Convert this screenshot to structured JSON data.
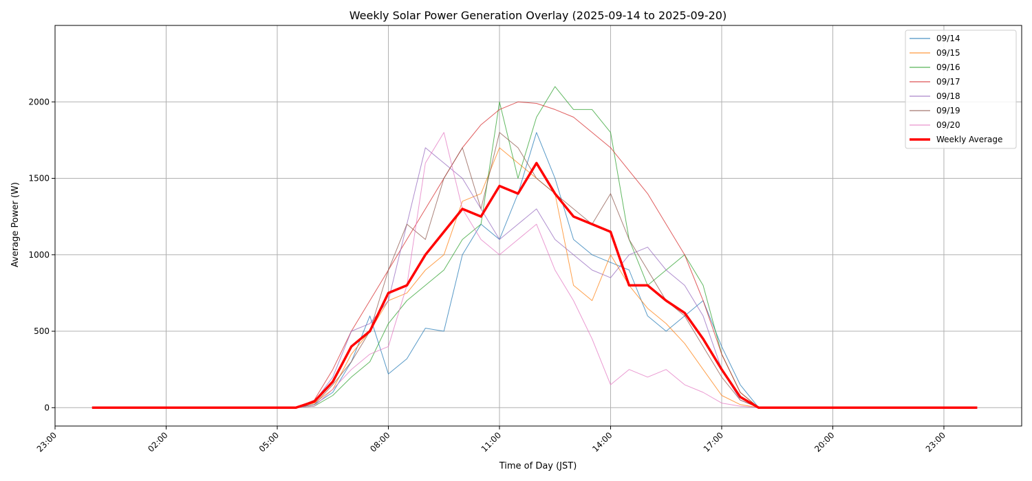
{
  "chart_data": {
    "type": "line",
    "title": "Weekly Solar Power Generation Overlay (2025-09-14 to 2025-09-20)",
    "xlabel": "Time of Day (JST)",
    "ylabel": "Average Power (W)",
    "xlim_hours": [
      -1.0,
      25.1
    ],
    "ylim": [
      -120,
      2500
    ],
    "x_ticks": [
      {
        "hour": -1,
        "label": "23:00"
      },
      {
        "hour": 2,
        "label": "02:00"
      },
      {
        "hour": 5,
        "label": "05:00"
      },
      {
        "hour": 8,
        "label": "08:00"
      },
      {
        "hour": 11,
        "label": "11:00"
      },
      {
        "hour": 14,
        "label": "14:00"
      },
      {
        "hour": 17,
        "label": "17:00"
      },
      {
        "hour": 20,
        "label": "20:00"
      },
      {
        "hour": 23,
        "label": "23:00"
      }
    ],
    "y_ticks": [
      0,
      500,
      1000,
      1500,
      2000
    ],
    "grid": true,
    "legend_position": "top-right",
    "x_hours": [
      0.0,
      0.5,
      1.0,
      1.5,
      2.0,
      2.5,
      3.0,
      3.5,
      4.0,
      4.5,
      5.0,
      5.5,
      6.0,
      6.5,
      7.0,
      7.5,
      8.0,
      8.5,
      9.0,
      9.5,
      10.0,
      10.5,
      11.0,
      11.5,
      12.0,
      12.5,
      13.0,
      13.5,
      14.0,
      14.5,
      15.0,
      15.5,
      16.0,
      16.5,
      17.0,
      17.5,
      18.0,
      18.5,
      19.0,
      19.5,
      20.0,
      20.5,
      21.0,
      21.5,
      22.0,
      22.5,
      23.0,
      23.5,
      23.9
    ],
    "series": [
      {
        "name": "09/14",
        "color": "#1f77b4",
        "values": [
          0,
          0,
          0,
          0,
          0,
          0,
          0,
          0,
          0,
          0,
          0,
          0,
          20,
          100,
          300,
          600,
          220,
          320,
          520,
          500,
          1000,
          1200,
          1100,
          1400,
          1800,
          1500,
          1100,
          1000,
          950,
          900,
          600,
          500,
          600,
          700,
          400,
          150,
          0,
          0,
          0,
          0,
          0,
          0,
          0,
          0,
          0,
          0,
          0,
          0,
          0
        ]
      },
      {
        "name": "09/15",
        "color": "#ff7f0e",
        "values": [
          0,
          0,
          0,
          0,
          0,
          0,
          0,
          0,
          0,
          0,
          0,
          0,
          30,
          120,
          350,
          500,
          700,
          750,
          900,
          1000,
          1350,
          1400,
          1700,
          1600,
          1500,
          1400,
          800,
          700,
          1000,
          800,
          650,
          550,
          420,
          250,
          80,
          20,
          0,
          0,
          0,
          0,
          0,
          0,
          0,
          0,
          0,
          0,
          0,
          0,
          0
        ]
      },
      {
        "name": "09/16",
        "color": "#2ca02c",
        "values": [
          0,
          0,
          0,
          0,
          0,
          0,
          0,
          0,
          0,
          0,
          0,
          0,
          10,
          80,
          200,
          300,
          550,
          700,
          800,
          900,
          1100,
          1200,
          2000,
          1500,
          1900,
          2100,
          1950,
          1950,
          1800,
          1100,
          800,
          900,
          1000,
          800,
          350,
          100,
          0,
          0,
          0,
          0,
          0,
          0,
          0,
          0,
          0,
          0,
          0,
          0,
          0
        ]
      },
      {
        "name": "09/17",
        "color": "#d62728",
        "values": [
          0,
          0,
          0,
          0,
          0,
          0,
          0,
          0,
          0,
          0,
          0,
          0,
          50,
          250,
          500,
          700,
          900,
          1100,
          1300,
          1500,
          1700,
          1850,
          1950,
          2000,
          1990,
          1950,
          1900,
          1800,
          1700,
          1550,
          1400,
          1200,
          1000,
          700,
          350,
          100,
          0,
          0,
          0,
          0,
          0,
          0,
          0,
          0,
          0,
          0,
          0,
          0,
          0
        ]
      },
      {
        "name": "09/18",
        "color": "#9467bd",
        "values": [
          0,
          0,
          0,
          0,
          0,
          0,
          0,
          0,
          0,
          0,
          0,
          0,
          40,
          200,
          500,
          550,
          700,
          1200,
          1700,
          1600,
          1500,
          1300,
          1100,
          1200,
          1300,
          1100,
          1000,
          900,
          850,
          1000,
          1050,
          900,
          800,
          600,
          250,
          50,
          0,
          0,
          0,
          0,
          0,
          0,
          0,
          0,
          0,
          0,
          0,
          0,
          0
        ]
      },
      {
        "name": "09/19",
        "color": "#8c564b",
        "values": [
          0,
          0,
          0,
          0,
          0,
          0,
          0,
          0,
          0,
          0,
          0,
          0,
          20,
          150,
          300,
          500,
          900,
          1200,
          1100,
          1500,
          1700,
          1300,
          1800,
          1700,
          1500,
          1400,
          1300,
          1200,
          1400,
          1100,
          900,
          700,
          600,
          400,
          200,
          50,
          0,
          0,
          0,
          0,
          0,
          0,
          0,
          0,
          0,
          0,
          0,
          0,
          0
        ]
      },
      {
        "name": "09/20",
        "color": "#e377c2",
        "values": [
          0,
          0,
          0,
          0,
          0,
          0,
          0,
          0,
          0,
          0,
          0,
          0,
          10,
          120,
          250,
          350,
          400,
          800,
          1600,
          1800,
          1300,
          1100,
          1000,
          1100,
          1200,
          900,
          700,
          450,
          150,
          250,
          200,
          250,
          150,
          100,
          30,
          10,
          0,
          0,
          0,
          0,
          0,
          0,
          0,
          0,
          0,
          0,
          0,
          0,
          0
        ]
      },
      {
        "name": "Weekly Average",
        "color": "#ff0000",
        "values": [
          0,
          0,
          0,
          0,
          0,
          0,
          0,
          0,
          0,
          0,
          0,
          0,
          40,
          170,
          400,
          500,
          750,
          800,
          1000,
          1150,
          1300,
          1250,
          1450,
          1400,
          1600,
          1400,
          1250,
          1200,
          1150,
          800,
          800,
          700,
          620,
          450,
          250,
          70,
          0,
          0,
          0,
          0,
          0,
          0,
          0,
          0,
          0,
          0,
          0,
          0,
          0
        ]
      }
    ]
  }
}
